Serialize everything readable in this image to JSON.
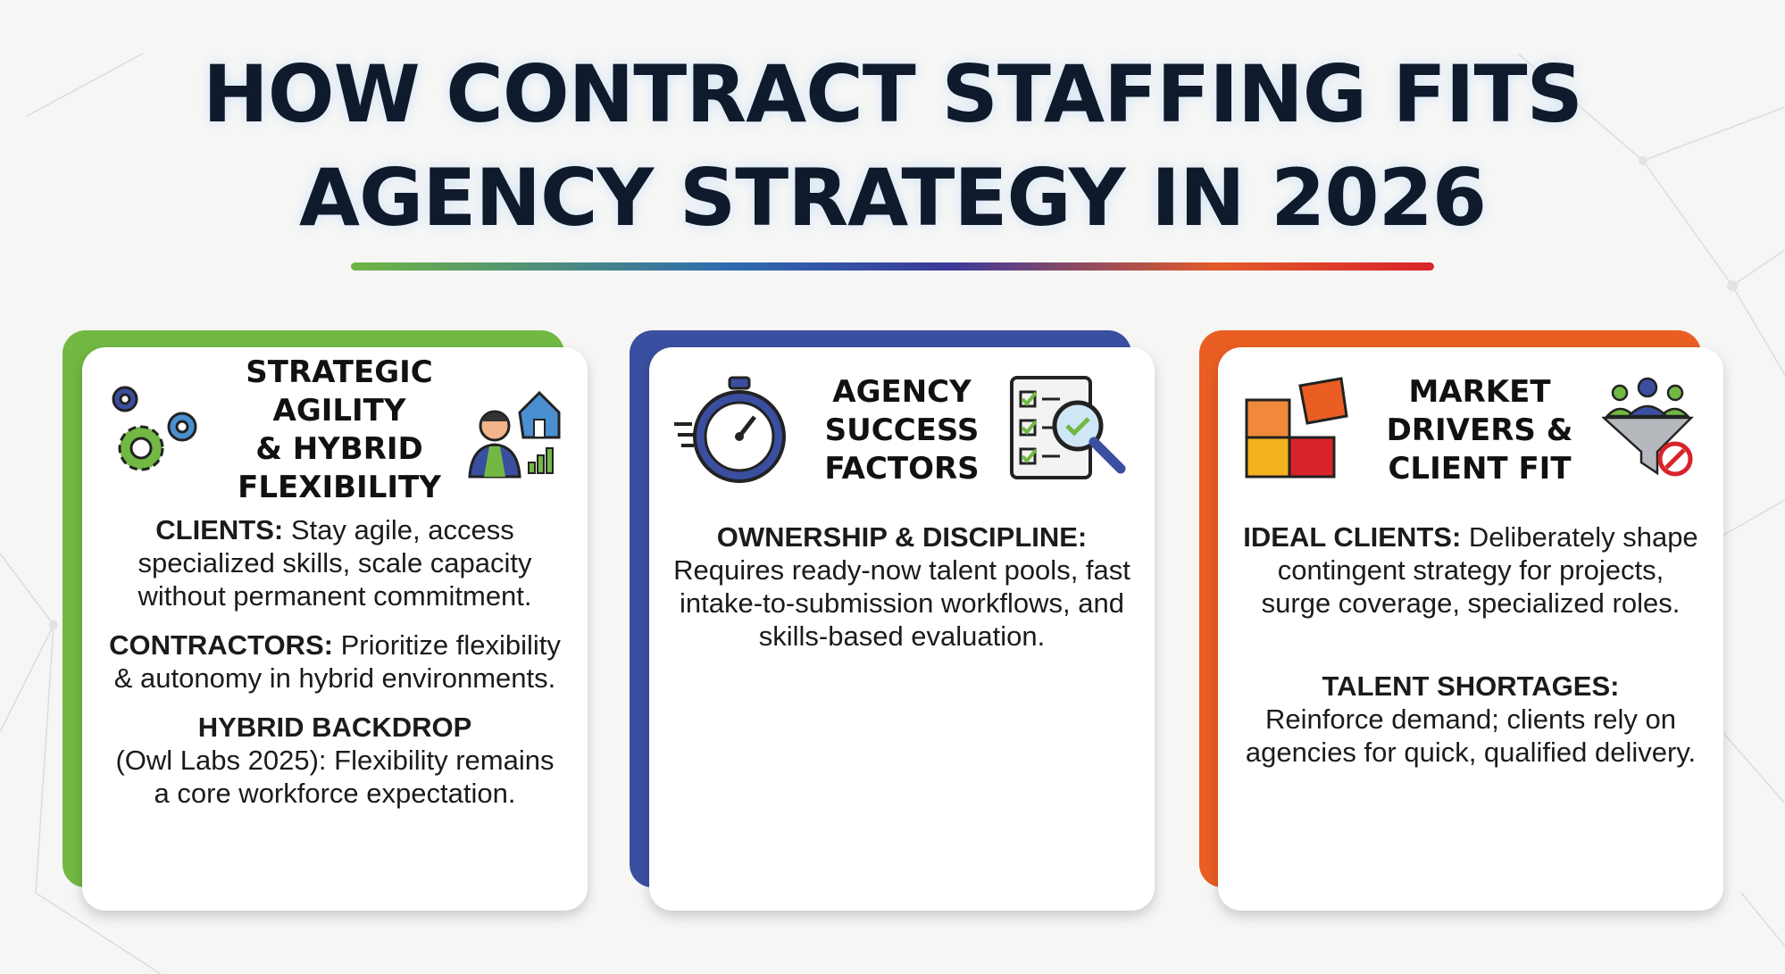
{
  "title": {
    "line1": "HOW CONTRACT STAFFING FITS",
    "line2": "AGENCY STRATEGY IN 2026"
  },
  "colors": {
    "green": "#72b843",
    "blue": "#3a4fa0",
    "orange": "#ea5e23"
  },
  "cards": [
    {
      "heading": [
        "STRATEGIC AGILITY",
        "& HYBRID",
        "FLEXIBILITY"
      ],
      "icons": [
        "gears-icon",
        "remote-worker-house-icon"
      ],
      "items": [
        {
          "label": "CLIENTS:",
          "text": " Stay agile, access specialized skills, scale capacity without permanent commitment."
        },
        {
          "label": "CONTRACTORS:",
          "text": " Prioritize flexibility & autonomy in hybrid environments."
        },
        {
          "label": "HYBRID BACKDROP",
          "text": "(Owl Labs 2025): Flexibility remains a core workforce expectation."
        }
      ]
    },
    {
      "heading": [
        "AGENCY",
        "SUCCESS",
        "FACTORS"
      ],
      "icons": [
        "stopwatch-icon",
        "checklist-magnifier-icon"
      ],
      "items": [
        {
          "label": "OWNERSHIP & DISCIPLINE:",
          "text": "Requires ready-now talent pools, fast intake-to-submission workflows, and skills-based evaluation."
        }
      ]
    },
    {
      "heading": [
        "MARKET",
        "DRIVERS &",
        "CLIENT FIT"
      ],
      "icons": [
        "puzzle-icon",
        "people-funnel-icon"
      ],
      "items": [
        {
          "label": "IDEAL CLIENTS:",
          "text": " Deliberately shape contingent strategy for projects, surge coverage, specialized roles."
        },
        {
          "label": "TALENT SHORTAGES:",
          "text": "Reinforce demand; clients rely on agencies for quick, qualified delivery."
        }
      ]
    }
  ]
}
